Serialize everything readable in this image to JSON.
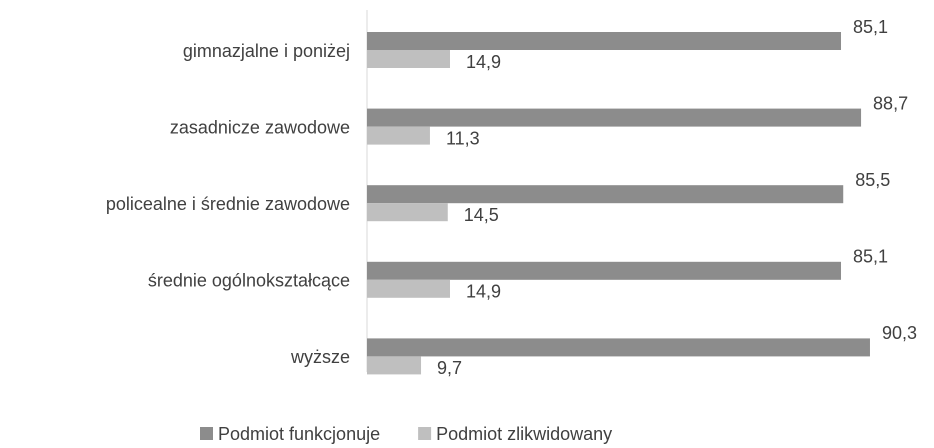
{
  "chart_data": {
    "type": "bar",
    "orientation": "horizontal",
    "categories": [
      "gimnazjalne i poniżej",
      "zasadnicze zawodowe",
      "policealne i średnie zawodowe",
      "średnie ogólnokształcące",
      "wyższe"
    ],
    "series": [
      {
        "name": "Podmiot funkcjonuje",
        "color": "#8c8c8c",
        "values": [
          85.1,
          88.7,
          85.5,
          85.1,
          90.3
        ],
        "value_labels": [
          "85,1",
          "88,7",
          "85,5",
          "85,1",
          "90,3"
        ]
      },
      {
        "name": "Podmiot zlikwidowany",
        "color": "#bfbfbf",
        "values": [
          14.9,
          11.3,
          14.5,
          14.9,
          9.7
        ],
        "value_labels": [
          "14,9",
          "11,3",
          "14,5",
          "14,9",
          "9,7"
        ]
      }
    ],
    "xlim": [
      0,
      100
    ],
    "legend": "bottom"
  }
}
